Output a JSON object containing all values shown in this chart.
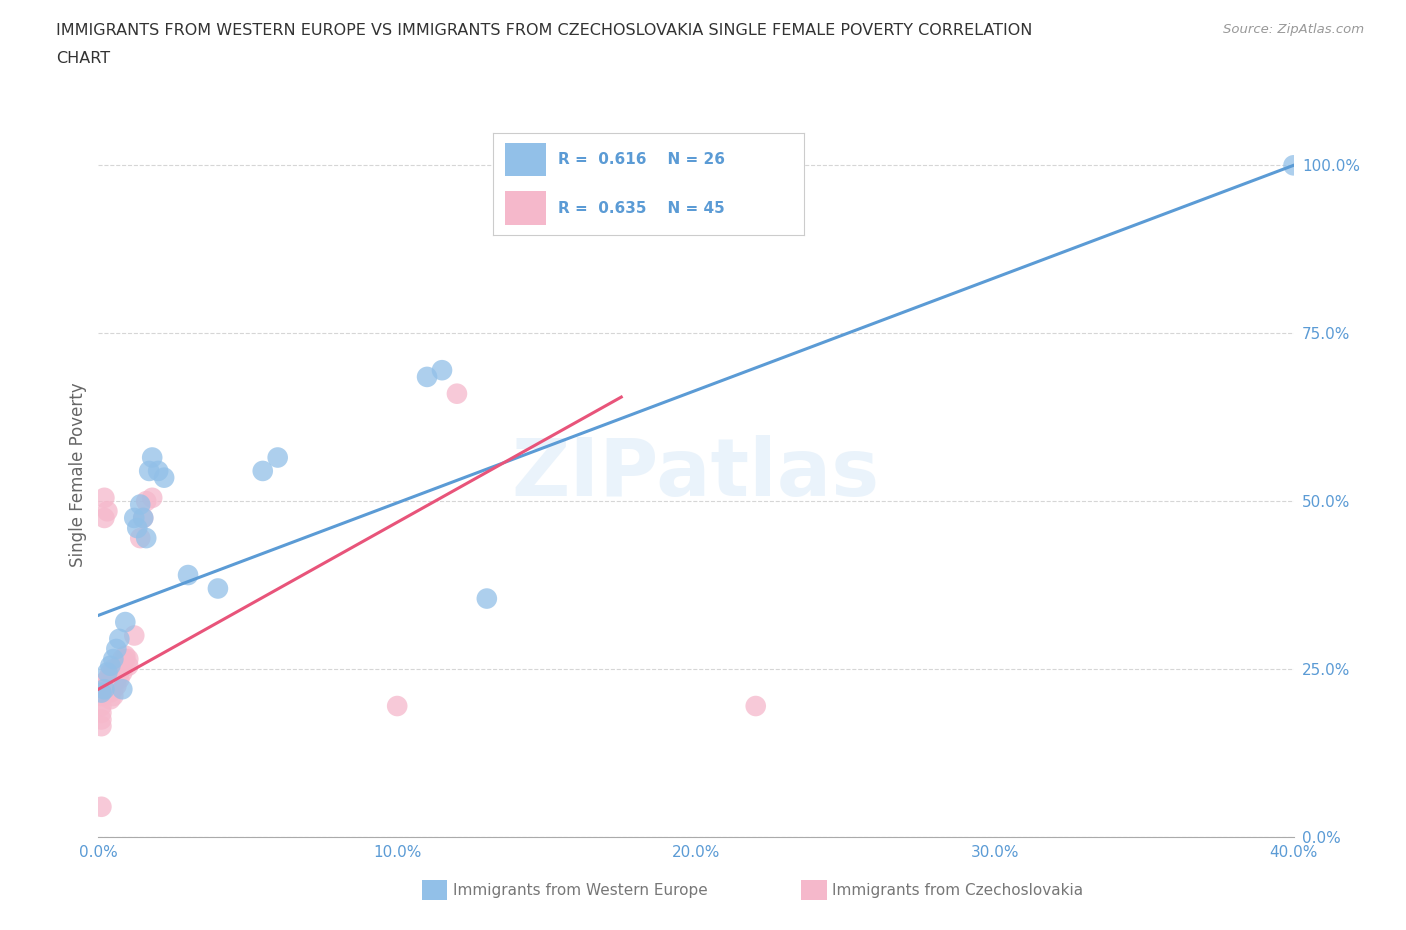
{
  "title_line1": "IMMIGRANTS FROM WESTERN EUROPE VS IMMIGRANTS FROM CZECHOSLOVAKIA SINGLE FEMALE POVERTY CORRELATION",
  "title_line2": "CHART",
  "source": "Source: ZipAtlas.com",
  "ylabel": "Single Female Poverty",
  "xlim": [
    0.0,
    0.4
  ],
  "ylim": [
    0.0,
    1.08
  ],
  "yticks": [
    0.0,
    0.25,
    0.5,
    0.75,
    1.0
  ],
  "ytick_labels": [
    "0.0%",
    "25.0%",
    "50.0%",
    "75.0%",
    "100.0%"
  ],
  "xticks": [
    0.0,
    0.1,
    0.2,
    0.3,
    0.4
  ],
  "xtick_labels": [
    "0.0%",
    "10.0%",
    "20.0%",
    "30.0%",
    "40.0%"
  ],
  "grid_color": "#cccccc",
  "blue_color": "#92c0e8",
  "pink_color": "#f5b8cb",
  "blue_line_color": "#5b9bd5",
  "pink_line_color": "#e8547a",
  "R_blue": 0.616,
  "N_blue": 26,
  "R_pink": 0.635,
  "N_pink": 45,
  "blue_line": [
    [
      0.0,
      0.33
    ],
    [
      0.4,
      1.0
    ]
  ],
  "pink_line": [
    [
      0.0,
      0.22
    ],
    [
      0.175,
      0.655
    ]
  ],
  "blue_scatter": [
    [
      0.001,
      0.215
    ],
    [
      0.002,
      0.22
    ],
    [
      0.003,
      0.245
    ],
    [
      0.004,
      0.255
    ],
    [
      0.005,
      0.265
    ],
    [
      0.006,
      0.28
    ],
    [
      0.007,
      0.295
    ],
    [
      0.008,
      0.22
    ],
    [
      0.009,
      0.32
    ],
    [
      0.012,
      0.475
    ],
    [
      0.013,
      0.46
    ],
    [
      0.014,
      0.495
    ],
    [
      0.015,
      0.475
    ],
    [
      0.016,
      0.445
    ],
    [
      0.017,
      0.545
    ],
    [
      0.018,
      0.565
    ],
    [
      0.02,
      0.545
    ],
    [
      0.022,
      0.535
    ],
    [
      0.03,
      0.39
    ],
    [
      0.04,
      0.37
    ],
    [
      0.055,
      0.545
    ],
    [
      0.06,
      0.565
    ],
    [
      0.11,
      0.685
    ],
    [
      0.115,
      0.695
    ],
    [
      0.13,
      0.355
    ],
    [
      0.4,
      1.0
    ]
  ],
  "pink_scatter": [
    [
      0.001,
      0.195
    ],
    [
      0.001,
      0.21
    ],
    [
      0.001,
      0.165
    ],
    [
      0.001,
      0.175
    ],
    [
      0.001,
      0.185
    ],
    [
      0.002,
      0.22
    ],
    [
      0.002,
      0.23
    ],
    [
      0.002,
      0.475
    ],
    [
      0.002,
      0.505
    ],
    [
      0.003,
      0.215
    ],
    [
      0.003,
      0.225
    ],
    [
      0.003,
      0.235
    ],
    [
      0.003,
      0.485
    ],
    [
      0.004,
      0.205
    ],
    [
      0.004,
      0.215
    ],
    [
      0.004,
      0.225
    ],
    [
      0.004,
      0.235
    ],
    [
      0.004,
      0.245
    ],
    [
      0.005,
      0.21
    ],
    [
      0.005,
      0.22
    ],
    [
      0.005,
      0.23
    ],
    [
      0.005,
      0.24
    ],
    [
      0.005,
      0.25
    ],
    [
      0.006,
      0.225
    ],
    [
      0.006,
      0.235
    ],
    [
      0.006,
      0.245
    ],
    [
      0.007,
      0.235
    ],
    [
      0.007,
      0.245
    ],
    [
      0.007,
      0.255
    ],
    [
      0.008,
      0.245
    ],
    [
      0.008,
      0.255
    ],
    [
      0.008,
      0.265
    ],
    [
      0.009,
      0.265
    ],
    [
      0.009,
      0.27
    ],
    [
      0.01,
      0.255
    ],
    [
      0.01,
      0.265
    ],
    [
      0.012,
      0.3
    ],
    [
      0.014,
      0.445
    ],
    [
      0.015,
      0.475
    ],
    [
      0.016,
      0.5
    ],
    [
      0.018,
      0.505
    ],
    [
      0.12,
      0.66
    ],
    [
      0.001,
      0.045
    ],
    [
      0.1,
      0.195
    ],
    [
      0.22,
      0.195
    ]
  ],
  "bg_color": "#ffffff",
  "tick_color": "#5b9bd5",
  "label_color": "#666666",
  "legend_text_color": "#5b9bd5"
}
